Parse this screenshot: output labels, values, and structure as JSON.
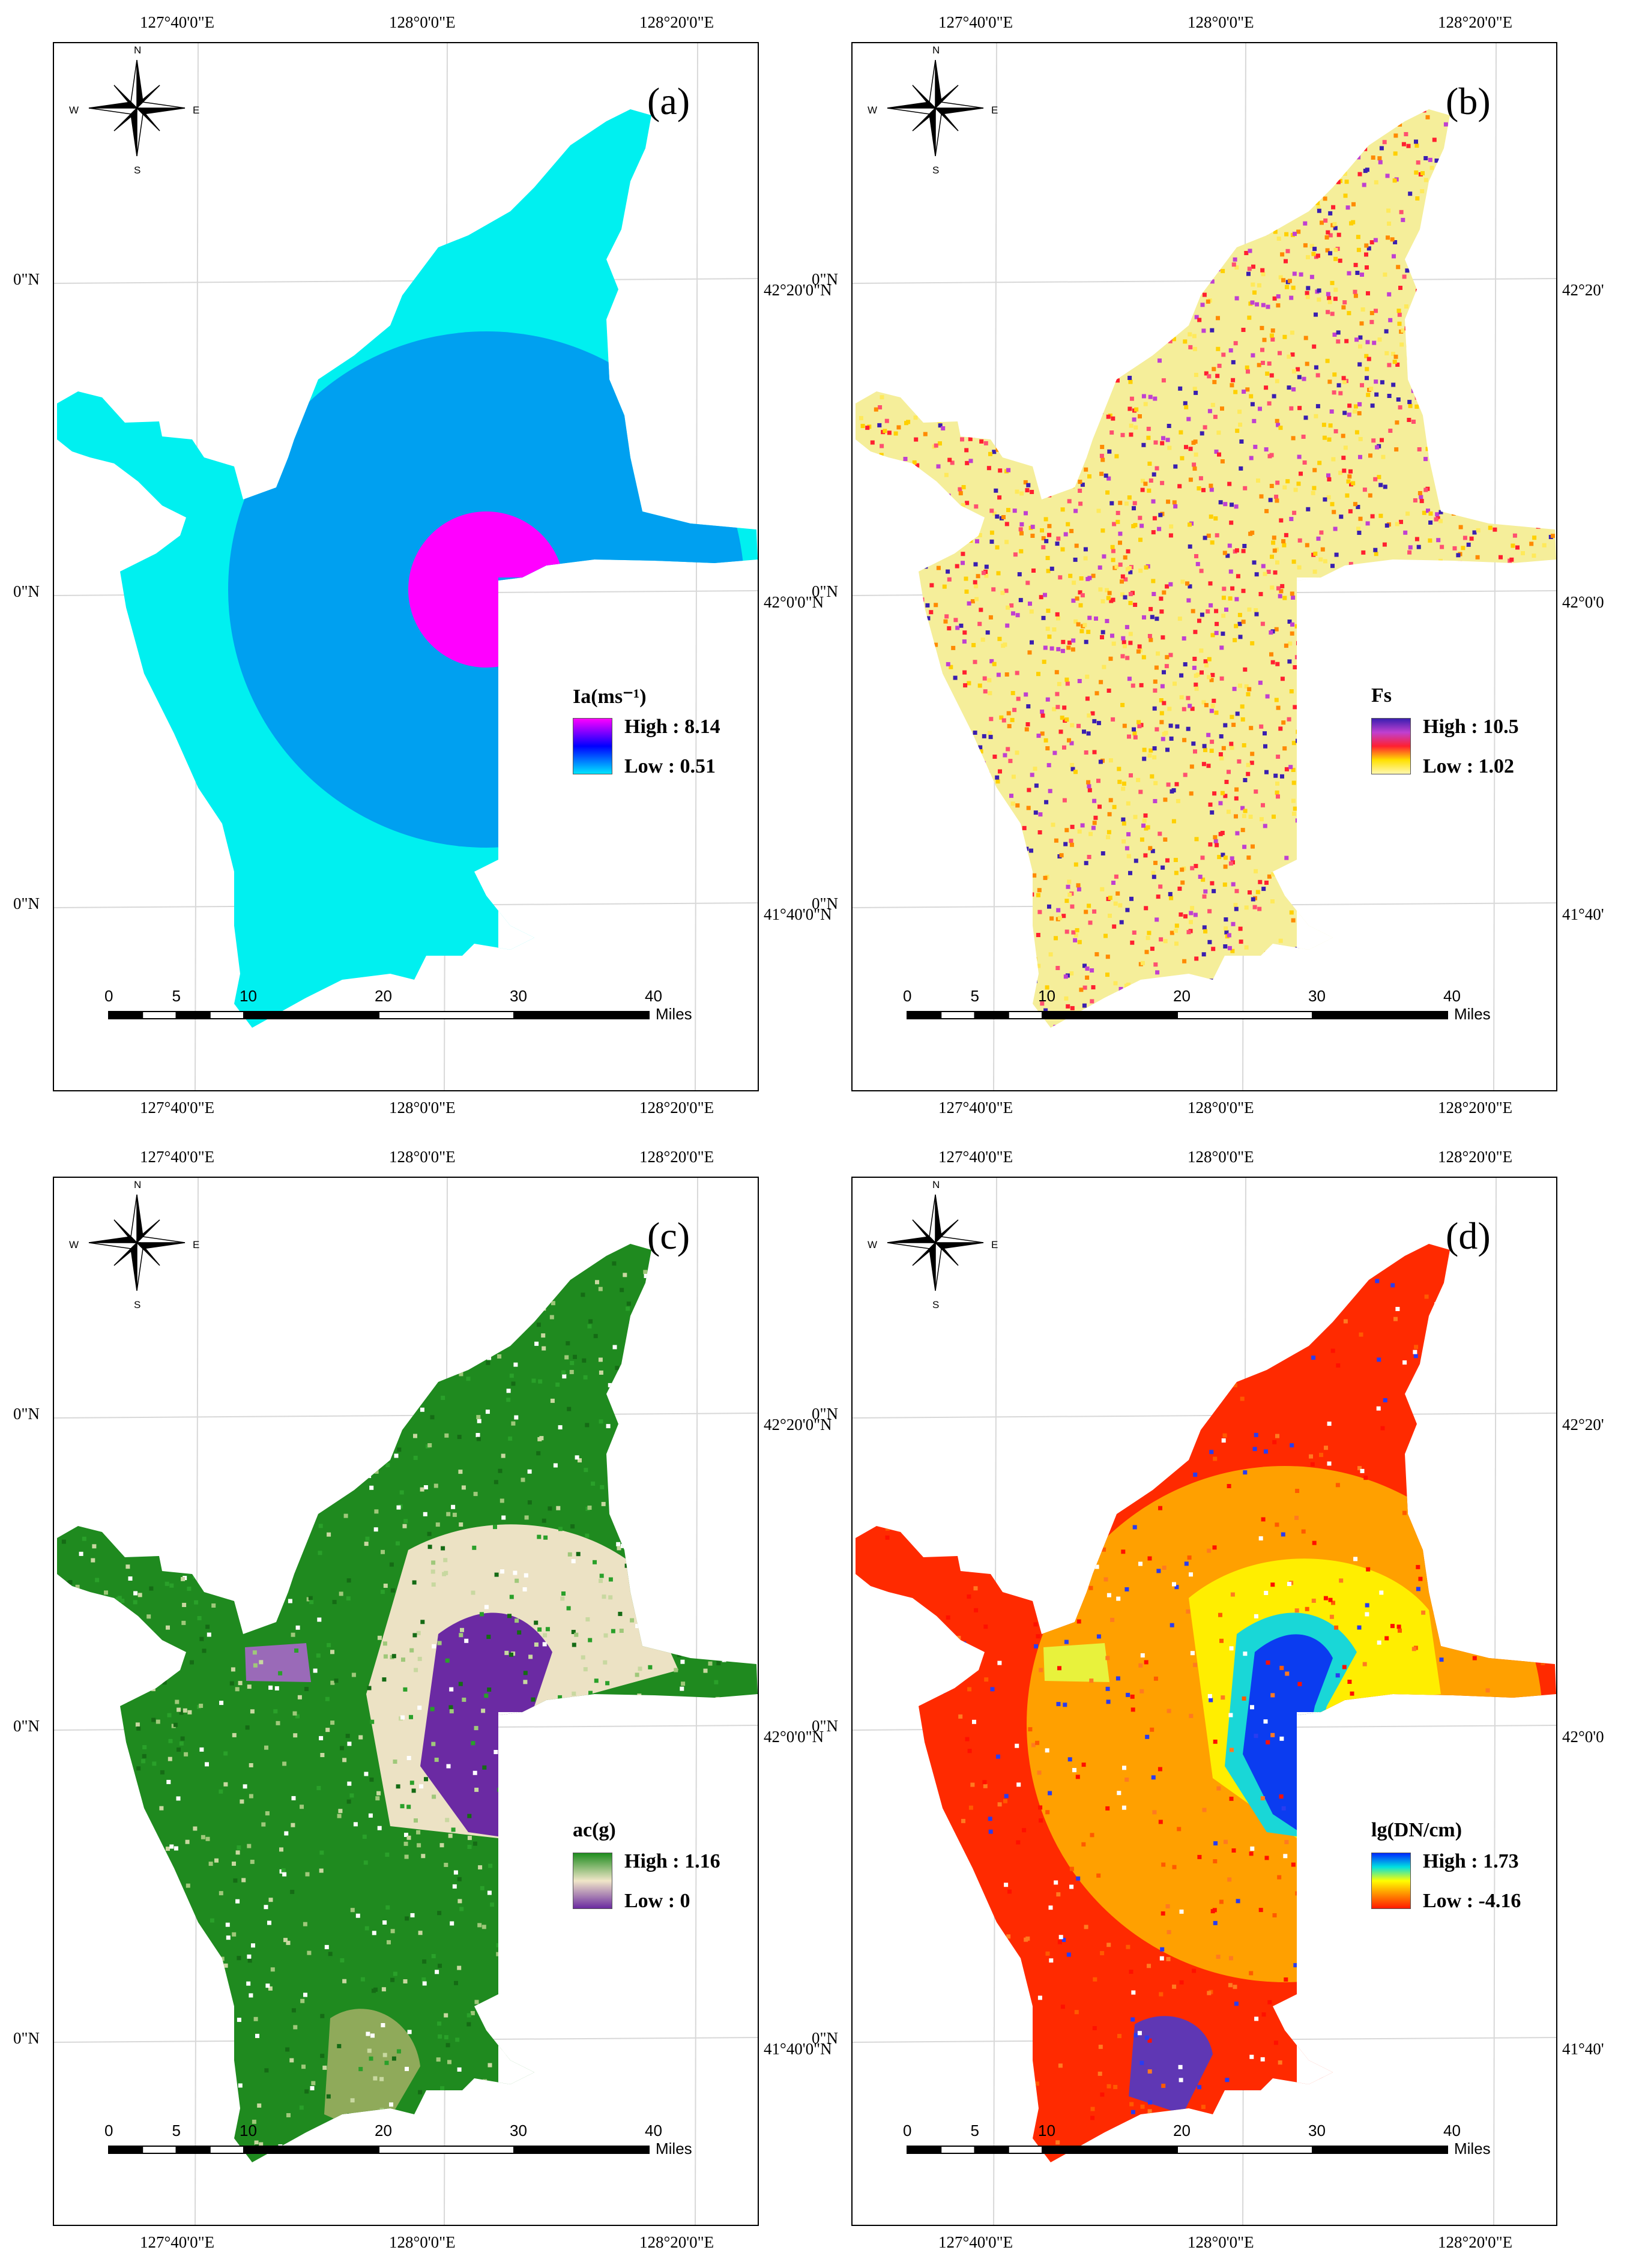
{
  "longitude_labels": [
    "127°40'0\"E",
    "128°0'0\"E",
    "128°20'0\"E"
  ],
  "latitude_labels_left": [
    "0\"N",
    "0\"N",
    "0\"N"
  ],
  "latitude_labels_right_a": [
    "42°20'0\"N",
    "42°0'0\"N",
    "41°40'0\"N"
  ],
  "latitude_labels_right_b": [
    "42°20'",
    "42°0'0",
    "41°40'"
  ],
  "compass": {
    "n": "N",
    "s": "S",
    "e": "E",
    "w": "W"
  },
  "scale_bar": {
    "ticks": [
      "0",
      "5",
      "10",
      "20",
      "30",
      "40"
    ],
    "unit": "Miles"
  },
  "panels": [
    {
      "label": "(a)",
      "legend_title": "Ia(ms⁻¹)",
      "high": "High : 8.14",
      "low": "Low : 0.51",
      "ramp_colors": [
        "#ff00ff",
        "#0000ff",
        "#00e5ff"
      ]
    },
    {
      "label": "(b)",
      "legend_title": "Fs",
      "high": "High : 10.5",
      "low": "Low : 1.02",
      "ramp_colors": [
        "#3a1fb0",
        "#c040d0",
        "#ff2030",
        "#ffe000",
        "#fff7b0"
      ]
    },
    {
      "label": "(c)",
      "legend_title": "ac(g)",
      "high": "High : 1.16",
      "low": "Low : 0",
      "ramp_colors": [
        "#1e8c1e",
        "#f0e6c8",
        "#6a2aa0"
      ]
    },
    {
      "label": "(d)",
      "legend_title": "lg(DN/cm)",
      "high": "High : 1.73",
      "low": "Low : -4.16",
      "ramp_colors": [
        "#0028ff",
        "#00e0e0",
        "#ffff00",
        "#ff8c00",
        "#ff1a00"
      ]
    }
  ],
  "colors": {
    "a_outer": "#00f0f0",
    "a_mid": "#00a0f0",
    "a_core": "#ff00ff",
    "b_base": "#f5ee9a",
    "c_base": "#1f8a1f",
    "c_mid": "#ece2c4",
    "c_core": "#6b2aa3",
    "d_outer": "#ff2a00",
    "d_mid": "#ffa000",
    "d_inner": "#ffee00",
    "d_core": "#0b3cf0",
    "d_cyan": "#19d7d7"
  }
}
